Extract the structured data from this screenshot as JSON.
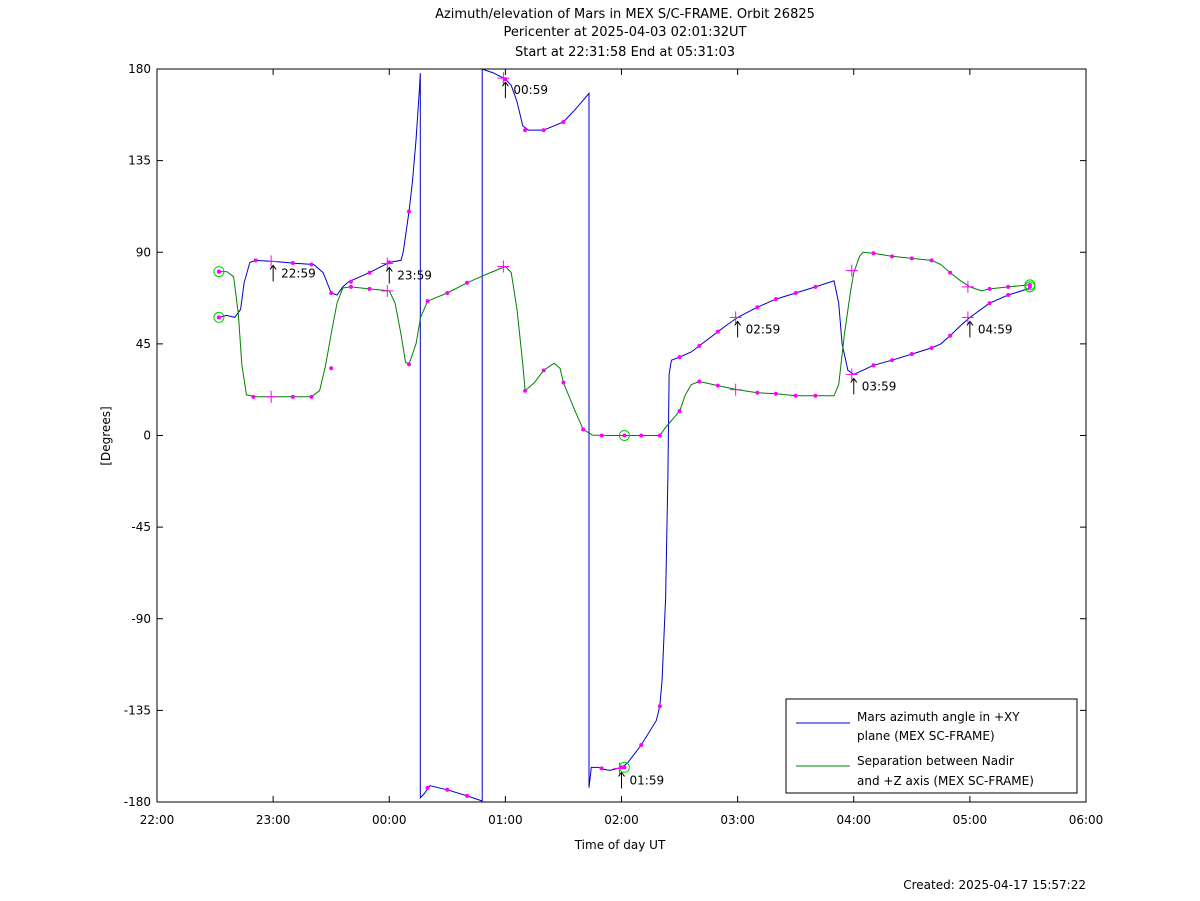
{
  "chart_data": {
    "type": "line",
    "title": "Azimuth/elevation of Mars in MEX S/C-FRAME.  Orbit 26825",
    "subtitle_1": "Pericenter at 2025-04-03 02:01:32UT",
    "subtitle_2": "Start at 22:31:58 End at 05:31:03",
    "xlabel": "Time of day UT",
    "ylabel": "[Degrees]",
    "created": "Created: 2025-04-17 15:57:22",
    "xlim_hours": [
      22,
      30
    ],
    "ylim": [
      -180,
      180
    ],
    "x_ticks": [
      {
        "h": 22,
        "label": "22:00"
      },
      {
        "h": 23,
        "label": "23:00"
      },
      {
        "h": 24,
        "label": "00:00"
      },
      {
        "h": 25,
        "label": "01:00"
      },
      {
        "h": 26,
        "label": "02:00"
      },
      {
        "h": 27,
        "label": "03:00"
      },
      {
        "h": 28,
        "label": "04:00"
      },
      {
        "h": 29,
        "label": "05:00"
      },
      {
        "h": 30,
        "label": "06:00"
      }
    ],
    "y_ticks": [
      {
        "v": 180,
        "label": "180"
      },
      {
        "v": 135,
        "label": "135"
      },
      {
        "v": 90,
        "label": "90"
      },
      {
        "v": 45,
        "label": "45"
      },
      {
        "v": 0,
        "label": "0"
      },
      {
        "v": -45,
        "label": "-45"
      },
      {
        "v": -90,
        "label": "-90"
      },
      {
        "v": -135,
        "label": "-135"
      },
      {
        "v": -180,
        "label": "-180"
      }
    ],
    "legend": {
      "placement": "bottom-right",
      "entries": [
        {
          "line1": "Mars azimuth angle in +XY",
          "line2": "plane (MEX SC-FRAME)",
          "color": "#0000cc"
        },
        {
          "line1": "Separation between Nadir",
          "line2": "and +Z axis (MEX SC-FRAME)",
          "color": "#008000"
        }
      ]
    },
    "series": [
      {
        "key": "azimuth",
        "color": "#0000cc",
        "points": [
          [
            22.533,
            58
          ],
          [
            22.6,
            59
          ],
          [
            22.67,
            58
          ],
          [
            22.72,
            62
          ],
          [
            22.75,
            75
          ],
          [
            22.8,
            85
          ],
          [
            22.85,
            86
          ],
          [
            23.0,
            85.5
          ],
          [
            23.2,
            84.5
          ],
          [
            23.35,
            84
          ],
          [
            23.43,
            80
          ],
          [
            23.5,
            70
          ],
          [
            23.55,
            69
          ],
          [
            23.6,
            73
          ],
          [
            23.65,
            75.5
          ],
          [
            23.83,
            80
          ],
          [
            24.0,
            85
          ],
          [
            24.1,
            86
          ],
          [
            24.12,
            90
          ],
          [
            24.17,
            110
          ],
          [
            24.2,
            125
          ],
          [
            24.23,
            145
          ],
          [
            24.26,
            170
          ],
          [
            24.267,
            178
          ],
          [
            24.267,
            -178
          ],
          [
            24.3,
            -176
          ],
          [
            24.35,
            -172
          ],
          [
            24.5,
            -174
          ],
          [
            24.67,
            -177
          ],
          [
            24.8,
            -179.5
          ],
          [
            24.8,
            180
          ],
          [
            24.9,
            178
          ],
          [
            25.0,
            175
          ],
          [
            25.05,
            172
          ],
          [
            25.1,
            164
          ],
          [
            25.15,
            152
          ],
          [
            25.2,
            150
          ],
          [
            25.33,
            150
          ],
          [
            25.5,
            154
          ],
          [
            25.6,
            160
          ],
          [
            25.72,
            168
          ],
          [
            25.72,
            -173
          ],
          [
            25.74,
            -163
          ],
          [
            25.8,
            -163
          ],
          [
            25.85,
            -164
          ],
          [
            25.9,
            -164.5
          ],
          [
            26.0,
            -163
          ],
          [
            26.05,
            -161
          ],
          [
            26.17,
            -152
          ],
          [
            26.3,
            -140
          ],
          [
            26.33,
            -133
          ],
          [
            26.35,
            -120
          ],
          [
            26.38,
            -80
          ],
          [
            26.4,
            -20
          ],
          [
            26.41,
            30
          ],
          [
            26.43,
            37
          ],
          [
            26.5,
            38.5
          ],
          [
            26.6,
            41
          ],
          [
            26.67,
            44
          ],
          [
            26.83,
            51
          ],
          [
            26.9,
            54
          ],
          [
            27.0,
            58
          ],
          [
            27.17,
            63
          ],
          [
            27.33,
            67
          ],
          [
            27.5,
            70
          ],
          [
            27.67,
            73
          ],
          [
            27.83,
            76
          ],
          [
            27.87,
            65
          ],
          [
            27.9,
            45
          ],
          [
            27.95,
            32
          ],
          [
            28.0,
            30
          ],
          [
            28.17,
            34.5
          ],
          [
            28.33,
            37
          ],
          [
            28.5,
            40
          ],
          [
            28.67,
            43
          ],
          [
            28.75,
            45
          ],
          [
            28.83,
            49
          ],
          [
            28.92,
            54
          ],
          [
            29.0,
            58
          ],
          [
            29.17,
            65
          ],
          [
            29.33,
            69
          ],
          [
            29.5,
            72
          ],
          [
            29.52,
            73
          ]
        ],
        "markers": [
          [
            22.533,
            58
          ],
          [
            22.85,
            86
          ],
          [
            23.17,
            84.7
          ],
          [
            23.33,
            84
          ],
          [
            23.5,
            70
          ],
          [
            23.67,
            75.5
          ],
          [
            23.83,
            80
          ],
          [
            24.0,
            85
          ],
          [
            24.17,
            110
          ],
          [
            24.33,
            -173
          ],
          [
            24.5,
            -174
          ],
          [
            24.67,
            -177
          ],
          [
            25.0,
            175
          ],
          [
            25.17,
            150
          ],
          [
            25.33,
            150
          ],
          [
            25.5,
            154
          ],
          [
            25.83,
            -163.5
          ],
          [
            26.0,
            -163
          ],
          [
            26.17,
            -152
          ],
          [
            26.33,
            -133
          ],
          [
            26.5,
            38.5
          ],
          [
            26.67,
            44
          ],
          [
            26.83,
            51
          ],
          [
            27.17,
            63
          ],
          [
            27.33,
            67
          ],
          [
            27.5,
            70
          ],
          [
            27.67,
            73
          ],
          [
            28.17,
            34.5
          ],
          [
            28.33,
            37
          ],
          [
            28.5,
            40
          ],
          [
            28.67,
            43
          ],
          [
            28.83,
            49
          ],
          [
            29.17,
            65
          ],
          [
            29.33,
            69
          ]
        ],
        "hour_marks": [
          {
            "x": 22.983,
            "y": 85.5,
            "label": "22:59"
          },
          {
            "x": 23.983,
            "y": 84.5,
            "label": "23:59"
          },
          {
            "x": 24.983,
            "y": 175.5,
            "label": "00:59"
          },
          {
            "x": 25.983,
            "y": -163.5,
            "label": "01:59"
          },
          {
            "x": 26.983,
            "y": 58,
            "label": "02:59"
          },
          {
            "x": 27.983,
            "y": 30,
            "label": "03:59"
          },
          {
            "x": 28.983,
            "y": 58,
            "label": "04:59"
          }
        ]
      },
      {
        "key": "separation",
        "color": "#008000",
        "points": [
          [
            22.533,
            80.5
          ],
          [
            22.6,
            80.5
          ],
          [
            22.66,
            78
          ],
          [
            22.7,
            60
          ],
          [
            22.73,
            35
          ],
          [
            22.77,
            20
          ],
          [
            22.85,
            19
          ],
          [
            23.0,
            19
          ],
          [
            23.17,
            19
          ],
          [
            23.33,
            19
          ],
          [
            23.4,
            22
          ],
          [
            23.45,
            34
          ],
          [
            23.5,
            50
          ],
          [
            23.55,
            65
          ],
          [
            23.6,
            72.5
          ],
          [
            23.67,
            73
          ],
          [
            23.83,
            72
          ],
          [
            24.0,
            71
          ],
          [
            24.05,
            65
          ],
          [
            24.1,
            50
          ],
          [
            24.14,
            36
          ],
          [
            24.17,
            35
          ],
          [
            24.23,
            45
          ],
          [
            24.27,
            58
          ],
          [
            24.33,
            66
          ],
          [
            24.5,
            70
          ],
          [
            24.67,
            75
          ],
          [
            24.83,
            79
          ],
          [
            25.0,
            83
          ],
          [
            25.05,
            80
          ],
          [
            25.1,
            62
          ],
          [
            25.15,
            35
          ],
          [
            25.17,
            22
          ],
          [
            25.25,
            26
          ],
          [
            25.33,
            32
          ],
          [
            25.42,
            35.5
          ],
          [
            25.47,
            33
          ],
          [
            25.5,
            26
          ],
          [
            25.6,
            12
          ],
          [
            25.67,
            3
          ],
          [
            25.75,
            0.2
          ],
          [
            25.9,
            0
          ],
          [
            26.0,
            0
          ],
          [
            26.17,
            0
          ],
          [
            26.33,
            0
          ],
          [
            26.38,
            4
          ],
          [
            26.5,
            12
          ],
          [
            26.55,
            20
          ],
          [
            26.6,
            25
          ],
          [
            26.67,
            26.5
          ],
          [
            26.83,
            24.5
          ],
          [
            27.0,
            22.5
          ],
          [
            27.17,
            21
          ],
          [
            27.33,
            20.5
          ],
          [
            27.5,
            19.5
          ],
          [
            27.67,
            19.5
          ],
          [
            27.83,
            19.5
          ],
          [
            27.87,
            25
          ],
          [
            27.92,
            50
          ],
          [
            27.97,
            70
          ],
          [
            28.0,
            80
          ],
          [
            28.05,
            88
          ],
          [
            28.08,
            90
          ],
          [
            28.17,
            89.5
          ],
          [
            28.33,
            88
          ],
          [
            28.5,
            87
          ],
          [
            28.67,
            86
          ],
          [
            28.75,
            84
          ],
          [
            28.83,
            80
          ],
          [
            28.92,
            76
          ],
          [
            29.0,
            73
          ],
          [
            29.1,
            71
          ],
          [
            29.17,
            72
          ],
          [
            29.33,
            73
          ],
          [
            29.52,
            74
          ]
        ],
        "markers": [
          [
            22.533,
            80.5
          ],
          [
            22.83,
            19
          ],
          [
            23.17,
            19
          ],
          [
            23.33,
            19
          ],
          [
            23.5,
            33
          ],
          [
            23.67,
            73
          ],
          [
            23.83,
            72
          ],
          [
            24.17,
            35
          ],
          [
            24.33,
            66
          ],
          [
            24.5,
            70
          ],
          [
            24.67,
            75
          ],
          [
            25.17,
            22
          ],
          [
            25.33,
            32
          ],
          [
            25.5,
            26
          ],
          [
            25.67,
            3
          ],
          [
            25.83,
            0
          ],
          [
            26.17,
            0
          ],
          [
            26.33,
            0
          ],
          [
            26.5,
            12
          ],
          [
            26.67,
            26.5
          ],
          [
            26.83,
            24.5
          ],
          [
            27.17,
            21
          ],
          [
            27.33,
            20.5
          ],
          [
            27.5,
            19.5
          ],
          [
            27.67,
            19.5
          ],
          [
            28.17,
            89.5
          ],
          [
            28.33,
            88
          ],
          [
            28.5,
            87
          ],
          [
            28.67,
            86
          ],
          [
            28.83,
            80
          ],
          [
            29.17,
            72
          ],
          [
            29.33,
            73
          ]
        ],
        "hour_marks": [
          {
            "x": 22.983,
            "y": 19
          },
          {
            "x": 23.983,
            "y": 71
          },
          {
            "x": 24.983,
            "y": 83
          },
          {
            "x": 26.983,
            "y": 22.5
          },
          {
            "x": 27.983,
            "y": 81
          },
          {
            "x": 28.983,
            "y": 73
          }
        ]
      }
    ],
    "circle_marks": [
      {
        "x": 22.533,
        "y": 80.5,
        "color": "#00cc00"
      },
      {
        "x": 22.533,
        "y": 58,
        "color": "#00cc00"
      },
      {
        "x": 26.025,
        "y": 0,
        "color": "#00cc00"
      },
      {
        "x": 26.025,
        "y": -163,
        "color": "#00cc00"
      },
      {
        "x": 29.517,
        "y": 74,
        "color": "#00cc00"
      },
      {
        "x": 29.517,
        "y": 73,
        "color": "#00cc00"
      }
    ],
    "marker_color": "#ff00ff"
  }
}
